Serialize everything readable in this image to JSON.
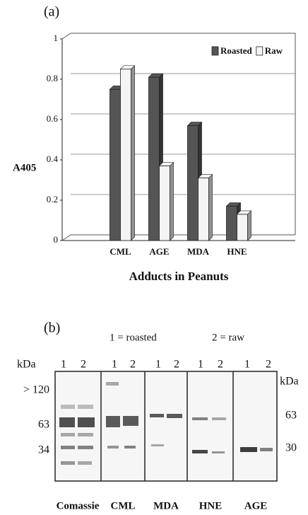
{
  "chart_data": {
    "type": "bar",
    "panel_label": "(a)",
    "ylabel": "A405",
    "xlabel": "Adducts in Peanuts",
    "categories": [
      null,
      "CML",
      "AGE",
      "MDA",
      "HNE",
      null
    ],
    "series": [
      {
        "name": "Roasted",
        "color": "#555555",
        "values": [
          null,
          0.75,
          0.81,
          0.57,
          0.17,
          null
        ]
      },
      {
        "name": "Raw",
        "color": "#f4f4f4",
        "values": [
          null,
          0.85,
          0.37,
          0.31,
          0.13,
          null
        ]
      }
    ],
    "ylim": [
      0,
      1
    ],
    "yticks": [
      0,
      0.2,
      0.4,
      0.6,
      0.8,
      1
    ],
    "grid": true,
    "legend": "top-right"
  },
  "panel_b": {
    "panel_label": "(b)",
    "key_roasted": "1 = roasted",
    "key_raw": "2 = raw",
    "unit_left": "kDa",
    "unit_right": "kDa",
    "lane_numbers": [
      "1",
      "2",
      "1",
      "2",
      "1",
      "2",
      "1",
      "2",
      "1",
      "2"
    ],
    "markers_left": [
      "> 120",
      "63",
      "34"
    ],
    "markers_right": [
      "63",
      "30"
    ],
    "blots": [
      "Comassie",
      "CML",
      "MDA",
      "HNE",
      "AGE"
    ]
  }
}
